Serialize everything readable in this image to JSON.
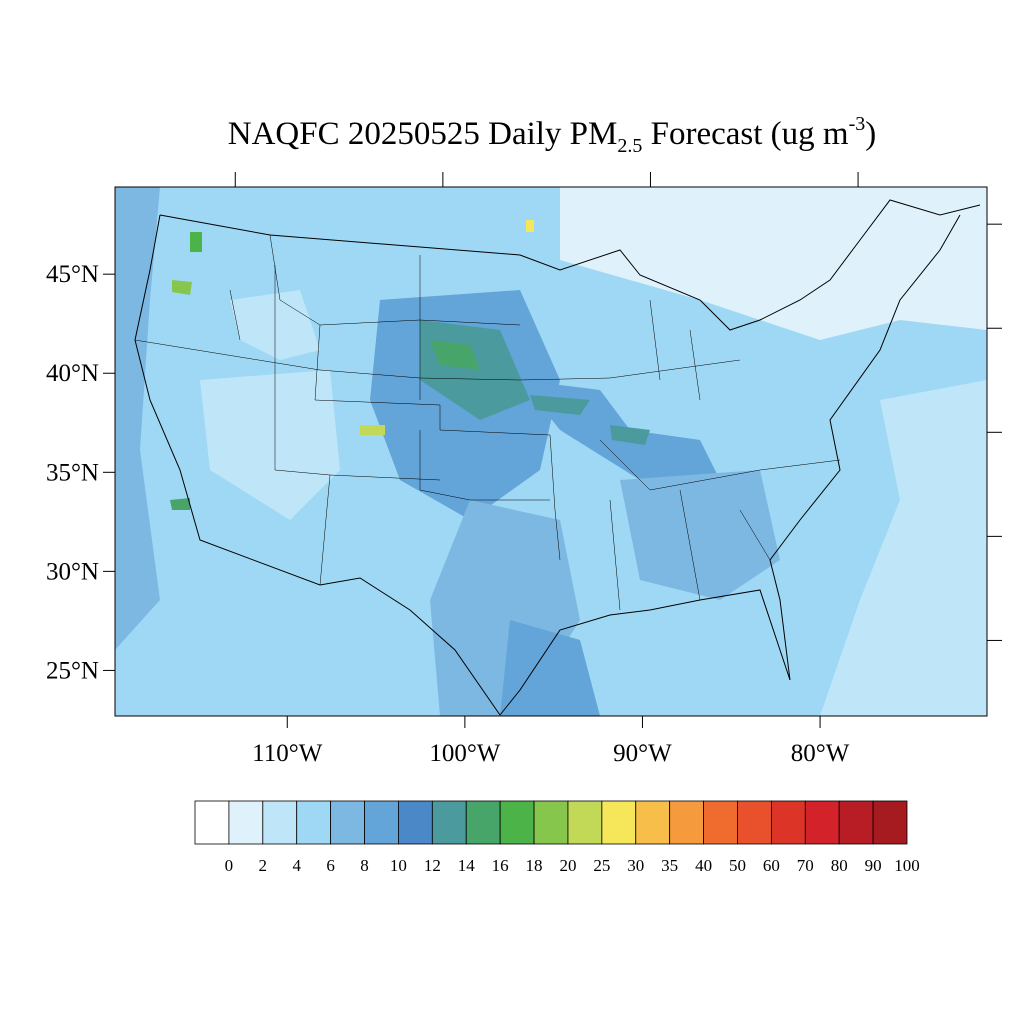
{
  "chart_data": {
    "type": "map",
    "title": [
      "NAQFC 20250525 Daily PM",
      "2.5",
      " Forecast (ug m",
      "-3",
      ")"
    ],
    "xlim": [
      -119.7,
      -70.6
    ],
    "xticks": [
      {
        "value": -110,
        "label": "110°W"
      },
      {
        "value": -100,
        "label": "100°W"
      },
      {
        "value": -90,
        "label": "90°W"
      },
      {
        "value": -80,
        "label": "80°W"
      }
    ],
    "ylim": [
      22.7,
      49.4
    ],
    "yticks": [
      {
        "value": 25,
        "label": "25°N"
      },
      {
        "value": 30,
        "label": "30°N"
      },
      {
        "value": 35,
        "label": "35°N"
      },
      {
        "value": 40,
        "label": "40°N"
      },
      {
        "value": 45,
        "label": "45°N"
      }
    ],
    "colorbar": {
      "levels": [
        0,
        2,
        4,
        6,
        8,
        10,
        12,
        14,
        16,
        18,
        20,
        25,
        30,
        35,
        40,
        50,
        60,
        70,
        80,
        90,
        100
      ],
      "colors": [
        "#ffffff",
        "#dff2fb",
        "#bfe6f8",
        "#9fd8f4",
        "#7db8e3",
        "#63a4d9",
        "#4a88c8",
        "#4a9a9e",
        "#47a56a",
        "#4bb347",
        "#87c64d",
        "#c2d857",
        "#f5e65a",
        "#f7bf4a",
        "#f59a3d",
        "#f06b2e",
        "#e8512c",
        "#dc3527",
        "#d3222a",
        "#b81d25",
        "#a61b20",
        "#8e1518"
      ]
    }
  }
}
